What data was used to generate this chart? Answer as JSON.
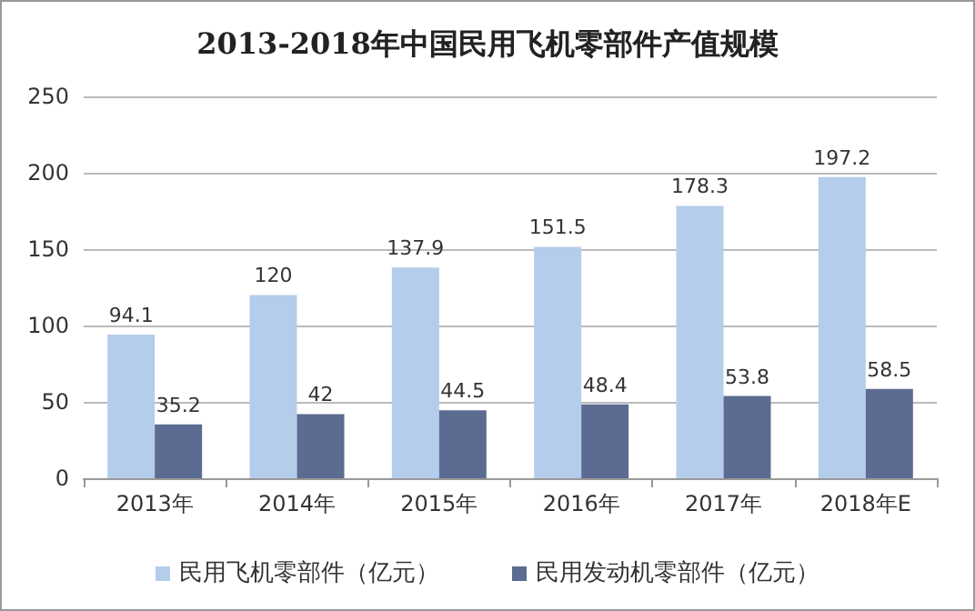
{
  "chart_data": {
    "type": "bar",
    "title": "2013-2018年中国民用飞机零部件产值规模",
    "categories": [
      "2013年",
      "2014年",
      "2015年",
      "2016年",
      "2017年",
      "2018年E"
    ],
    "series": [
      {
        "name": "民用飞机零部件（亿元）",
        "color": "#b4cdea",
        "values": [
          94.1,
          120,
          137.9,
          151.5,
          178.3,
          197.2
        ]
      },
      {
        "name": "民用发动机零部件（亿元）",
        "color": "#5c6b91",
        "values": [
          35.2,
          42,
          44.5,
          48.4,
          53.8,
          58.5
        ]
      }
    ],
    "ylim": [
      0,
      250
    ],
    "yticks": [
      0,
      50,
      100,
      150,
      200,
      250
    ],
    "grid": "y",
    "legend": "bottom",
    "data_labels": true
  }
}
